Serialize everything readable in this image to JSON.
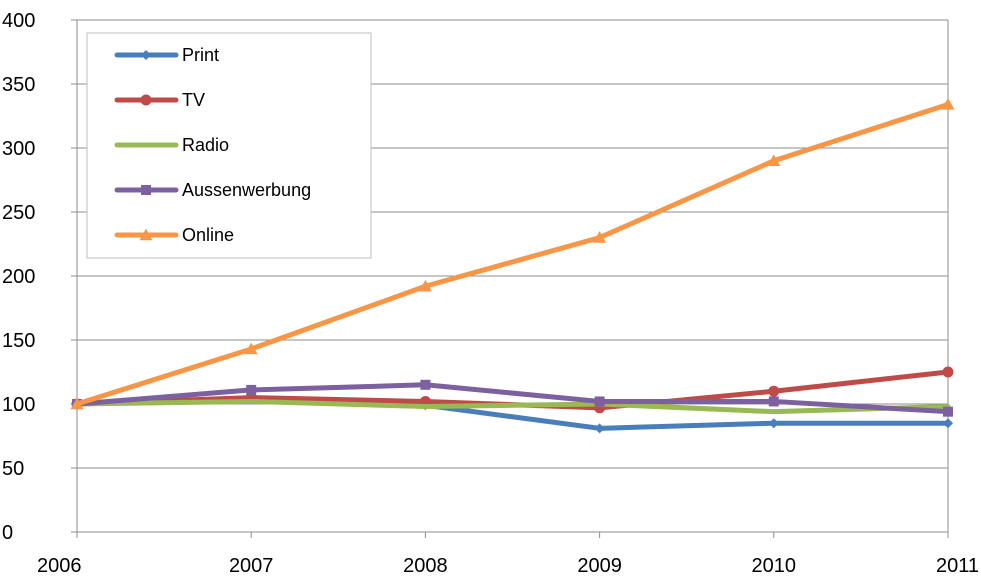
{
  "chart_data": {
    "type": "line",
    "title": "",
    "xlabel": "",
    "ylabel": "",
    "x": [
      "2006",
      "2007",
      "2008",
      "2009",
      "2010",
      "2011"
    ],
    "ylim": [
      0,
      400
    ],
    "yticks": [
      0,
      50,
      100,
      150,
      200,
      250,
      300,
      350,
      400
    ],
    "grid": true,
    "legend_position": "top-left",
    "series": [
      {
        "name": "Print",
        "color": "#4a7ebb",
        "marker": "diamond",
        "values": [
          100,
          104,
          99,
          81,
          85,
          85
        ]
      },
      {
        "name": "TV",
        "color": "#be4b48",
        "marker": "circle",
        "values": [
          100,
          105,
          102,
          97,
          110,
          125
        ]
      },
      {
        "name": "Radio",
        "color": "#98b954",
        "marker": "none",
        "values": [
          100,
          102,
          98,
          100,
          94,
          98
        ]
      },
      {
        "name": "Aussenwerbung",
        "color": "#7d60a0",
        "marker": "square",
        "values": [
          100,
          111,
          115,
          102,
          102,
          94
        ]
      },
      {
        "name": "Online",
        "color": "#f79646",
        "marker": "triangle",
        "values": [
          100,
          143,
          192,
          230,
          290,
          334
        ]
      }
    ]
  }
}
